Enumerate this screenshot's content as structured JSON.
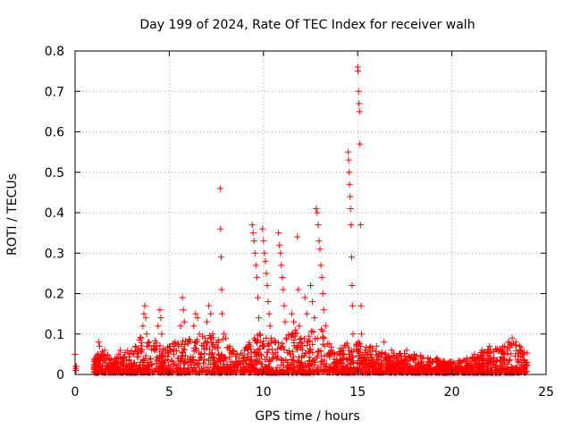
{
  "chart_data": {
    "type": "scatter",
    "title": "Day 199 of 2024, Rate Of TEC Index for receiver walh",
    "xlabel": "GPS time / hours",
    "ylabel": "ROTI / TECUs",
    "xlim": [
      0,
      25
    ],
    "ylim": [
      0,
      0.8
    ],
    "xticks": [
      0,
      5,
      10,
      15,
      20,
      25
    ],
    "xtick_labels": [
      "0",
      "5",
      "10",
      "15",
      "20",
      "25"
    ],
    "yticks": [
      0,
      0.1,
      0.2,
      0.3,
      0.4,
      0.5,
      0.6,
      0.7,
      0.8
    ],
    "ytick_labels": [
      "0",
      "0.1",
      "0.2",
      "0.3",
      "0.4",
      "0.5",
      "0.6",
      "0.7",
      "0.8"
    ],
    "grid": true,
    "marker": "+",
    "color": "#ff0000",
    "series": [
      {
        "name": "ROTI",
        "points": [
          [
            0.0,
            0.05
          ],
          [
            0.02,
            0.02
          ],
          [
            0.04,
            0.015
          ],
          [
            0.05,
            0.01
          ],
          [
            0.08,
            0.02
          ],
          [
            1.0,
            0.02
          ],
          [
            1.1,
            0.03
          ],
          [
            1.2,
            0.05
          ],
          [
            1.25,
            0.08
          ],
          [
            1.3,
            0.07
          ],
          [
            1.4,
            0.04
          ],
          [
            1.6,
            0.03
          ],
          [
            1.8,
            0.02
          ],
          [
            2.0,
            0.03
          ],
          [
            2.2,
            0.04
          ],
          [
            2.4,
            0.06
          ],
          [
            2.6,
            0.04
          ],
          [
            2.9,
            0.05
          ],
          [
            3.2,
            0.07
          ],
          [
            3.5,
            0.09
          ],
          [
            3.6,
            0.12
          ],
          [
            3.65,
            0.15
          ],
          [
            3.7,
            0.17
          ],
          [
            3.75,
            0.14
          ],
          [
            3.8,
            0.1
          ],
          [
            3.9,
            0.08
          ],
          [
            4.2,
            0.07
          ],
          [
            4.4,
            0.12
          ],
          [
            4.5,
            0.16
          ],
          [
            4.55,
            0.14
          ],
          [
            4.6,
            0.1
          ],
          [
            4.8,
            0.06
          ],
          [
            5.0,
            0.07
          ],
          [
            5.3,
            0.08
          ],
          [
            5.6,
            0.12
          ],
          [
            5.7,
            0.19
          ],
          [
            5.75,
            0.16
          ],
          [
            5.8,
            0.13
          ],
          [
            6.0,
            0.08
          ],
          [
            6.3,
            0.12
          ],
          [
            6.4,
            0.15
          ],
          [
            6.5,
            0.14
          ],
          [
            6.6,
            0.1
          ],
          [
            6.9,
            0.09
          ],
          [
            7.0,
            0.13
          ],
          [
            7.1,
            0.17
          ],
          [
            7.2,
            0.15
          ],
          [
            7.3,
            0.1
          ],
          [
            7.7,
            0.46
          ],
          [
            7.72,
            0.36
          ],
          [
            7.75,
            0.29
          ],
          [
            7.78,
            0.21
          ],
          [
            7.8,
            0.15
          ],
          [
            7.9,
            0.1
          ],
          [
            8.0,
            0.09
          ],
          [
            8.2,
            0.06
          ],
          [
            8.6,
            0.05
          ],
          [
            9.0,
            0.06
          ],
          [
            9.3,
            0.07
          ],
          [
            9.4,
            0.37
          ],
          [
            9.45,
            0.35
          ],
          [
            9.5,
            0.33
          ],
          [
            9.55,
            0.3
          ],
          [
            9.6,
            0.27
          ],
          [
            9.65,
            0.24
          ],
          [
            9.7,
            0.19
          ],
          [
            9.75,
            0.14
          ],
          [
            9.8,
            0.1
          ],
          [
            9.95,
            0.36
          ],
          [
            10.0,
            0.33
          ],
          [
            10.05,
            0.3
          ],
          [
            10.1,
            0.28
          ],
          [
            10.15,
            0.25
          ],
          [
            10.2,
            0.22
          ],
          [
            10.25,
            0.18
          ],
          [
            10.3,
            0.15
          ],
          [
            10.35,
            0.12
          ],
          [
            10.4,
            0.09
          ],
          [
            10.8,
            0.35
          ],
          [
            10.85,
            0.32
          ],
          [
            10.9,
            0.3
          ],
          [
            10.95,
            0.27
          ],
          [
            11.0,
            0.24
          ],
          [
            11.05,
            0.21
          ],
          [
            11.1,
            0.17
          ],
          [
            11.15,
            0.13
          ],
          [
            11.2,
            0.09
          ],
          [
            11.5,
            0.15
          ],
          [
            11.6,
            0.13
          ],
          [
            11.7,
            0.11
          ],
          [
            11.8,
            0.34
          ],
          [
            11.85,
            0.21
          ],
          [
            11.9,
            0.12
          ],
          [
            12.0,
            0.09
          ],
          [
            12.2,
            0.19
          ],
          [
            12.3,
            0.15
          ],
          [
            12.5,
            0.22
          ],
          [
            12.6,
            0.18
          ],
          [
            12.7,
            0.14
          ],
          [
            12.8,
            0.41
          ],
          [
            12.85,
            0.4
          ],
          [
            12.9,
            0.37
          ],
          [
            12.95,
            0.33
          ],
          [
            13.0,
            0.31
          ],
          [
            13.05,
            0.27
          ],
          [
            13.1,
            0.24
          ],
          [
            13.15,
            0.2
          ],
          [
            13.2,
            0.16
          ],
          [
            13.3,
            0.12
          ],
          [
            13.6,
            0.06
          ],
          [
            13.9,
            0.05
          ],
          [
            14.2,
            0.06
          ],
          [
            14.5,
            0.55
          ],
          [
            14.52,
            0.53
          ],
          [
            14.55,
            0.5
          ],
          [
            14.57,
            0.47
          ],
          [
            14.6,
            0.44
          ],
          [
            14.62,
            0.41
          ],
          [
            14.65,
            0.37
          ],
          [
            14.68,
            0.29
          ],
          [
            14.7,
            0.22
          ],
          [
            14.72,
            0.17
          ],
          [
            14.75,
            0.1
          ],
          [
            15.0,
            0.76
          ],
          [
            15.02,
            0.75
          ],
          [
            15.05,
            0.7
          ],
          [
            15.07,
            0.67
          ],
          [
            15.1,
            0.65
          ],
          [
            15.12,
            0.57
          ],
          [
            15.15,
            0.37
          ],
          [
            15.18,
            0.17
          ],
          [
            15.2,
            0.1
          ],
          [
            15.4,
            0.06
          ],
          [
            15.7,
            0.05
          ],
          [
            16.0,
            0.07
          ],
          [
            16.4,
            0.08
          ],
          [
            16.8,
            0.06
          ],
          [
            17.2,
            0.05
          ],
          [
            17.6,
            0.06
          ],
          [
            18.0,
            0.05
          ],
          [
            18.4,
            0.04
          ],
          [
            18.8,
            0.03
          ],
          [
            19.2,
            0.04
          ],
          [
            19.6,
            0.03
          ],
          [
            20.0,
            0.02
          ],
          [
            20.4,
            0.03
          ],
          [
            20.8,
            0.04
          ],
          [
            21.2,
            0.05
          ],
          [
            21.6,
            0.06
          ],
          [
            22.0,
            0.07
          ],
          [
            22.4,
            0.06
          ],
          [
            22.8,
            0.07
          ],
          [
            23.0,
            0.08
          ],
          [
            23.2,
            0.09
          ],
          [
            23.4,
            0.08
          ],
          [
            23.6,
            0.07
          ],
          [
            23.8,
            0.05
          ],
          [
            24.0,
            0.03
          ]
        ]
      }
    ],
    "dense_band": {
      "description": "dense cluster of low ROTI values",
      "x_range": [
        1.0,
        24.0
      ],
      "envelope": [
        [
          1.0,
          0.04
        ],
        [
          1.5,
          0.06
        ],
        [
          2.0,
          0.04
        ],
        [
          2.5,
          0.05
        ],
        [
          3.0,
          0.06
        ],
        [
          3.5,
          0.09
        ],
        [
          4.0,
          0.08
        ],
        [
          4.5,
          0.08
        ],
        [
          5.0,
          0.07
        ],
        [
          5.5,
          0.08
        ],
        [
          6.0,
          0.09
        ],
        [
          6.5,
          0.09
        ],
        [
          7.0,
          0.1
        ],
        [
          7.5,
          0.09
        ],
        [
          8.0,
          0.08
        ],
        [
          8.5,
          0.05
        ],
        [
          9.0,
          0.06
        ],
        [
          9.5,
          0.1
        ],
        [
          10.0,
          0.1
        ],
        [
          10.5,
          0.08
        ],
        [
          11.0,
          0.09
        ],
        [
          11.5,
          0.1
        ],
        [
          12.0,
          0.1
        ],
        [
          12.5,
          0.11
        ],
        [
          13.0,
          0.12
        ],
        [
          13.5,
          0.07
        ],
        [
          14.0,
          0.06
        ],
        [
          14.5,
          0.08
        ],
        [
          15.0,
          0.08
        ],
        [
          15.5,
          0.07
        ],
        [
          16.0,
          0.06
        ],
        [
          16.5,
          0.06
        ],
        [
          17.0,
          0.05
        ],
        [
          17.5,
          0.05
        ],
        [
          18.0,
          0.05
        ],
        [
          18.5,
          0.04
        ],
        [
          19.0,
          0.04
        ],
        [
          19.5,
          0.03
        ],
        [
          20.0,
          0.03
        ],
        [
          20.5,
          0.03
        ],
        [
          21.0,
          0.04
        ],
        [
          21.5,
          0.05
        ],
        [
          22.0,
          0.06
        ],
        [
          22.5,
          0.06
        ],
        [
          23.0,
          0.08
        ],
        [
          23.5,
          0.07
        ],
        [
          24.0,
          0.05
        ]
      ],
      "count": 2200
    }
  }
}
